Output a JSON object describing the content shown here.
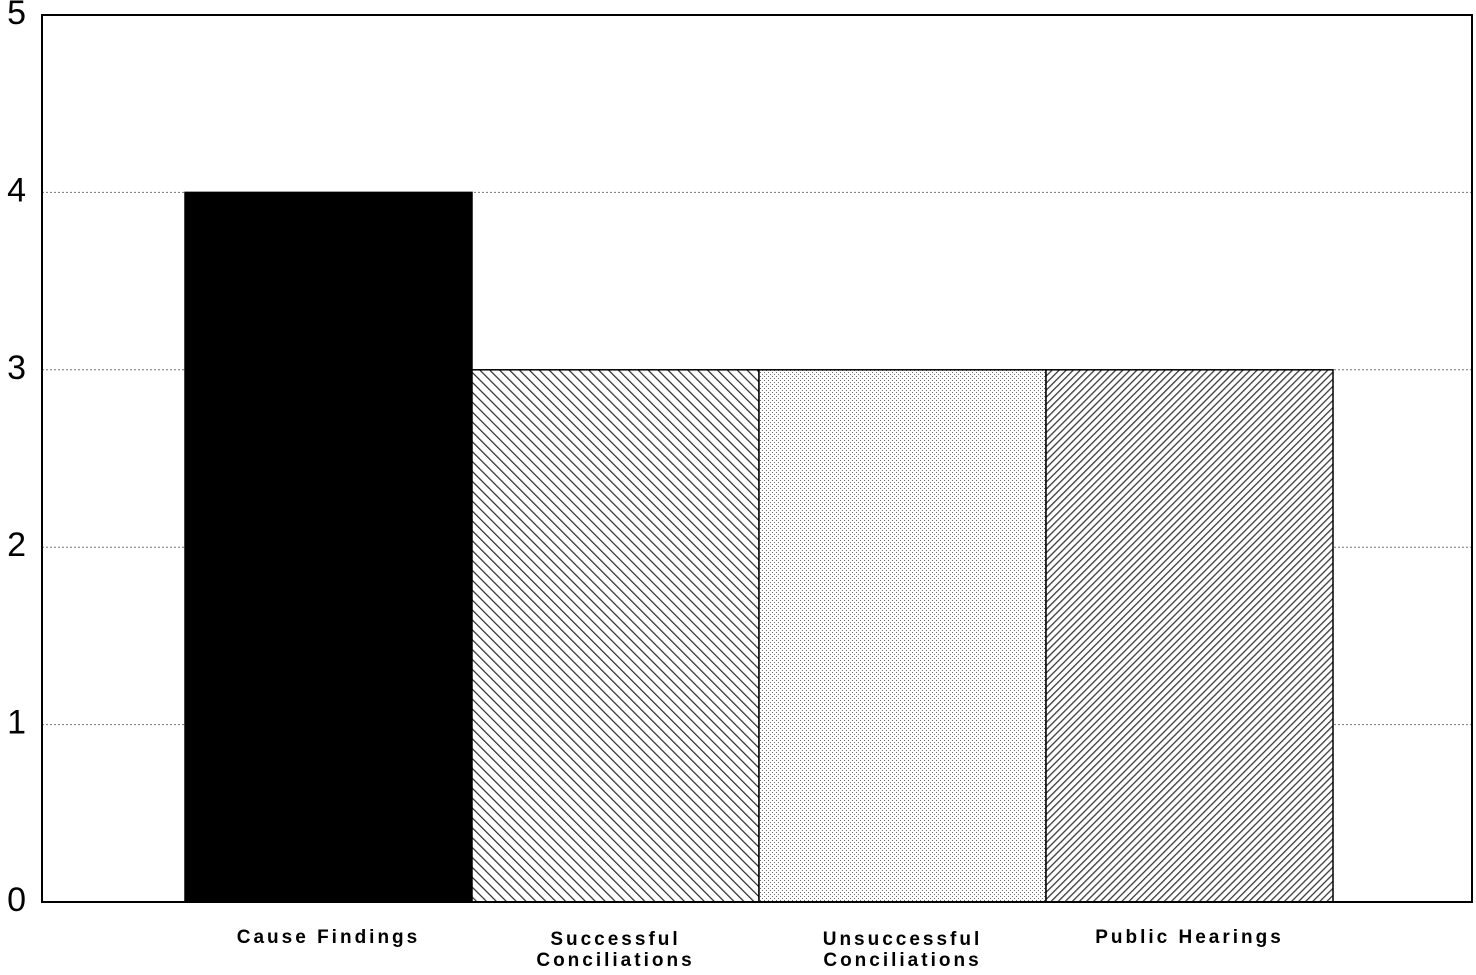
{
  "chart_data": {
    "type": "bar",
    "categories": [
      [
        "Cause Findings"
      ],
      [
        "Successful",
        "Conciliations"
      ],
      [
        "Unsuccessful",
        "Conciliations"
      ],
      [
        "Public Hearings"
      ]
    ],
    "values": [
      4,
      3,
      3,
      3
    ],
    "bar_fills": [
      "solid-black",
      "diagonal-hatch-forward",
      "light-stipple",
      "diagonal-hatch-back-dense"
    ],
    "ylim": [
      0,
      5
    ],
    "yticks": [
      "0",
      "1",
      "2",
      "3",
      "4",
      "5"
    ],
    "grid": "horizontal dotted",
    "legend": "none"
  }
}
